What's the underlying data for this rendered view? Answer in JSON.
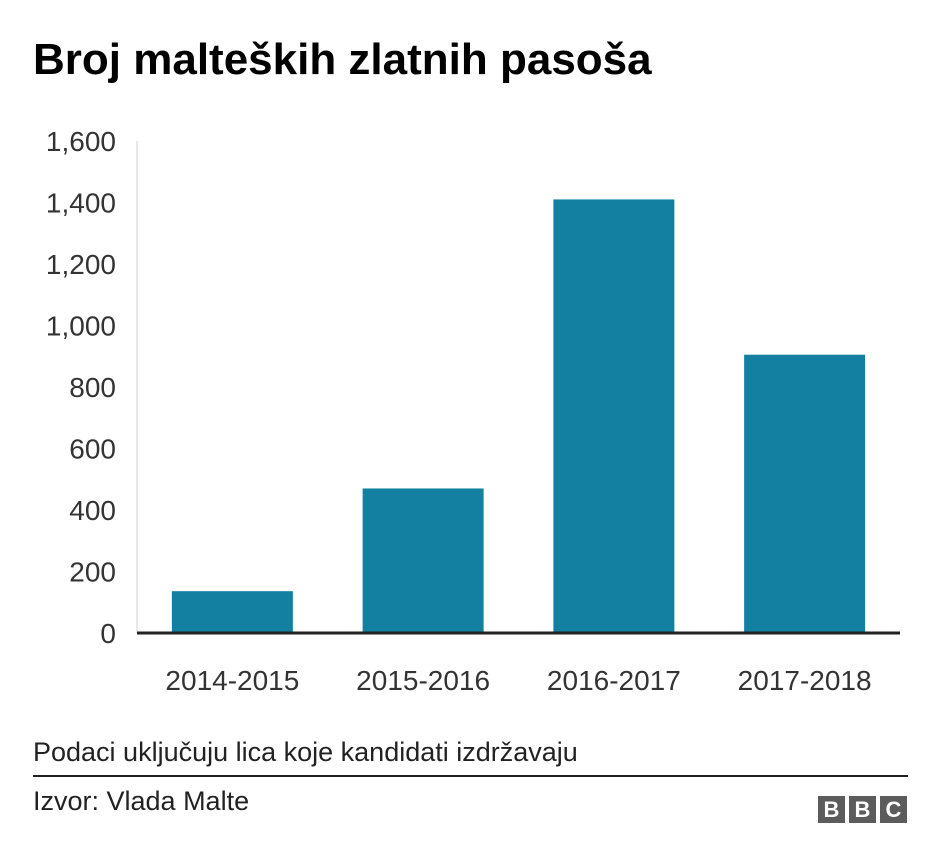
{
  "chart_data": {
    "type": "bar",
    "title": "Broj malteških zlatnih pasoša",
    "xlabel": "",
    "ylabel": "",
    "categories": [
      "2014-2015",
      "2015-2016",
      "2016-2017",
      "2017-2018"
    ],
    "values": [
      136,
      470,
      1410,
      905
    ],
    "ylim": [
      0,
      1600
    ],
    "yticks": [
      0,
      200,
      400,
      600,
      800,
      1000,
      1200,
      1400,
      1600
    ],
    "ytick_labels": [
      "0",
      "200",
      "400",
      "600",
      "800",
      "1,000",
      "1,200",
      "1,400",
      "1,600"
    ],
    "grid": false,
    "legend": "none",
    "bar_color": "#1380A1"
  },
  "footer": {
    "note": "Podaci uključuju lica koje kandidati izdržavaju",
    "source": "Izvor: Vlada Malte",
    "logo_letters": [
      "B",
      "B",
      "C"
    ]
  }
}
